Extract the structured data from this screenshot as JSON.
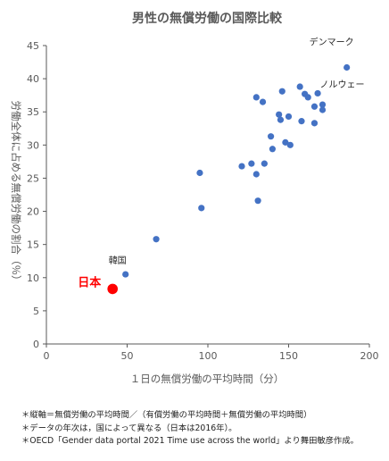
{
  "chart_data": {
    "type": "scatter",
    "title": "男性の無償労働の国際比較",
    "xlabel": "１日の無償労働の平均時間（分）",
    "ylabel": "労働全体に占める無償労働の割合（％）",
    "xlim": [
      0,
      200
    ],
    "ylim": [
      0,
      45
    ],
    "x_ticks": [
      "0",
      "50",
      "100",
      "150",
      "200"
    ],
    "y_ticks": [
      "0",
      "5",
      "10",
      "15",
      "20",
      "25",
      "30",
      "35",
      "40",
      "45"
    ],
    "grid": false,
    "series": [
      {
        "color": "#4472C4",
        "points": [
          {
            "x": 186,
            "y": 41.7
          },
          {
            "x": 157,
            "y": 38.8
          },
          {
            "x": 146,
            "y": 38.1
          },
          {
            "x": 168,
            "y": 37.8
          },
          {
            "x": 160,
            "y": 37.7
          },
          {
            "x": 162,
            "y": 37.2
          },
          {
            "x": 130,
            "y": 37.2
          },
          {
            "x": 134,
            "y": 36.5
          },
          {
            "x": 171,
            "y": 36.1
          },
          {
            "x": 166,
            "y": 35.8
          },
          {
            "x": 171,
            "y": 35.3
          },
          {
            "x": 144,
            "y": 34.6
          },
          {
            "x": 150,
            "y": 34.3
          },
          {
            "x": 145,
            "y": 33.8
          },
          {
            "x": 158,
            "y": 33.6
          },
          {
            "x": 166,
            "y": 33.3
          },
          {
            "x": 139,
            "y": 31.3
          },
          {
            "x": 148,
            "y": 30.4
          },
          {
            "x": 151,
            "y": 30.0
          },
          {
            "x": 140,
            "y": 29.4
          },
          {
            "x": 127,
            "y": 27.2
          },
          {
            "x": 135,
            "y": 27.2
          },
          {
            "x": 121,
            "y": 26.8
          },
          {
            "x": 95,
            "y": 25.8
          },
          {
            "x": 130,
            "y": 25.6
          },
          {
            "x": 131,
            "y": 21.6
          },
          {
            "x": 96,
            "y": 20.5
          },
          {
            "x": 68,
            "y": 15.8
          },
          {
            "x": 49,
            "y": 10.5
          }
        ]
      },
      {
        "color": "#FF0000",
        "points": [
          {
            "x": 41,
            "y": 8.3
          }
        ]
      }
    ],
    "annotations": [
      {
        "text": "デンマーク",
        "x": 186,
        "y": 41.7
      },
      {
        "text": "ノルウェー",
        "x": 171,
        "y": 36.1
      },
      {
        "text": "韓国",
        "x": 49,
        "y": 10.5
      },
      {
        "text": "日本",
        "x": 41,
        "y": 8.3,
        "color": "#FF0000"
      }
    ]
  },
  "notes": [
    "＊縦軸＝無償労働の平均時間／（有償労働の平均時間＋無償労働の平均時間）",
    "＊データの年次は，国によって異なる（日本は2016年）。",
    "＊OECD「Gender data portal 2021 Time use across the world」より舞田敏彦作成。"
  ]
}
